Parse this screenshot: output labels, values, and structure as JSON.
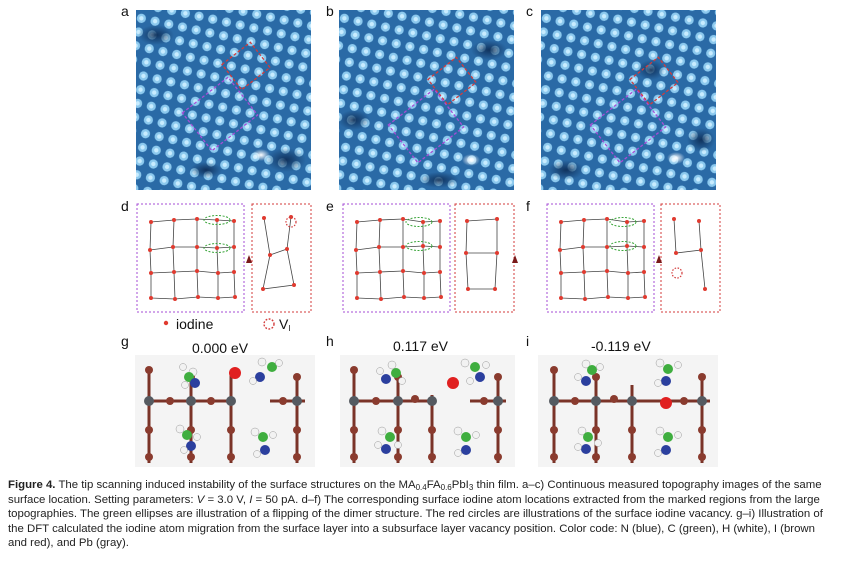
{
  "panels": {
    "a": "a",
    "b": "b",
    "c": "c",
    "d": "d",
    "e": "e",
    "f": "f",
    "g": "g",
    "h": "h",
    "i": "i"
  },
  "legend": {
    "iodine_label": "iodine",
    "vacancy_label_main": "V",
    "vacancy_label_sub": "I"
  },
  "energies": {
    "g": "0.000 eV",
    "h": "0.117 eV",
    "i": "-0.119 eV"
  },
  "colors": {
    "stm_dark": "#1b4f86",
    "stm_light": "#9fd3f2",
    "dashed_red": "#d33b3b",
    "dashed_purple": "#a64dd6",
    "iodine_dot": "#e03a2f",
    "ellipse_green": "#3aa53a",
    "N_blue": "#2b3f9e",
    "C_green": "#3fae3f",
    "H_white": "#f2f2f2",
    "I_brown": "#8a3b2e",
    "I_red": "#e02020",
    "Pb_gray": "#555a60"
  },
  "caption": {
    "figure_label": "Figure 4.",
    "line1_a": "The tip scanning induced instability of the surface structures on the MA",
    "ma_sub": "0.4",
    "fa": "FA",
    "fa_sub": "0.6",
    "pbi": "PbI",
    "i_sub": "3",
    "line1_b": "thin film. a–c) Continuous measured topography images of the same surface location. Setting parameters:",
    "v_sym": "V",
    "v_val": "= 3.0 V,",
    "i_sym": "I",
    "i_val": "= 50 pA. d–f) The corresponding surface iodine atom locations extracted from the marked regions from the large topographies. The green ellipses are illustration of a flipping of the dimer structure. The red circles are illustrations of the surface iodine vacancy. g–i) Illustration of the DFT calculated the iodine atom migration from the surface layer into a subsurface layer vacancy position. Color code: N (blue), C (green), H (white), I (brown and red), and Pb (gray)."
  }
}
